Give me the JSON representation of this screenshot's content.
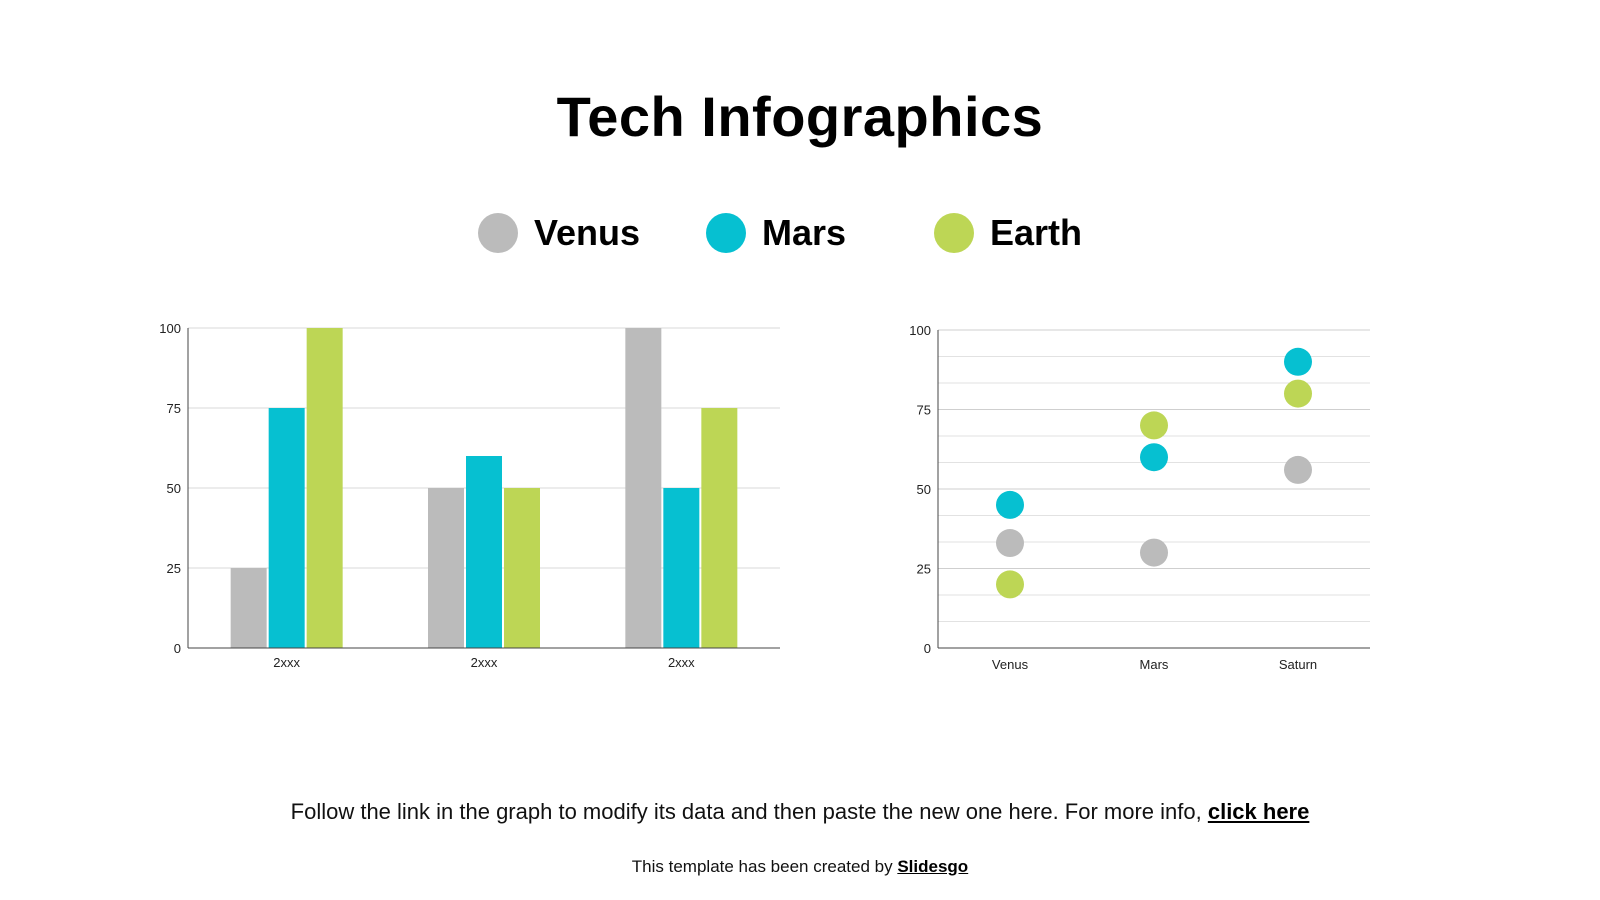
{
  "slide": {
    "title": "Tech Infographics",
    "footer_text": "Follow the link in the graph to modify its data and then paste the new one here. For more info,",
    "footer_link": "click here",
    "credit_text": "This template has been created by",
    "credit_link": "Slidesgo"
  },
  "legend": [
    {
      "label": "Venus",
      "color": "#bbbbbb"
    },
    {
      "label": "Mars",
      "color": "#06c0d1"
    },
    {
      "label": "Earth",
      "color": "#bdd655"
    }
  ],
  "chart_data": [
    {
      "type": "bar",
      "categories": [
        "2xxx",
        "2xxx",
        "2xxx"
      ],
      "series": [
        {
          "name": "Venus",
          "color": "#bbbbbb",
          "values": [
            25,
            50,
            100
          ]
        },
        {
          "name": "Mars",
          "color": "#06c0d1",
          "values": [
            75,
            60,
            50
          ]
        },
        {
          "name": "Earth",
          "color": "#bdd655",
          "values": [
            100,
            50,
            75
          ]
        }
      ],
      "yticks": [
        0,
        25,
        50,
        75,
        100
      ],
      "ylim": [
        0,
        100
      ],
      "grid": true
    },
    {
      "type": "scatter",
      "categories": [
        "Venus",
        "Mars",
        "Saturn"
      ],
      "series": [
        {
          "name": "Venus",
          "color": "#bbbbbb",
          "values": [
            33,
            30,
            56
          ]
        },
        {
          "name": "Mars",
          "color": "#06c0d1",
          "values": [
            45,
            60,
            90
          ]
        },
        {
          "name": "Earth",
          "color": "#bdd655",
          "values": [
            20,
            70,
            80
          ]
        }
      ],
      "yticks": [
        0,
        25,
        50,
        75,
        100
      ],
      "ylim": [
        0,
        100
      ],
      "grid": true
    }
  ]
}
